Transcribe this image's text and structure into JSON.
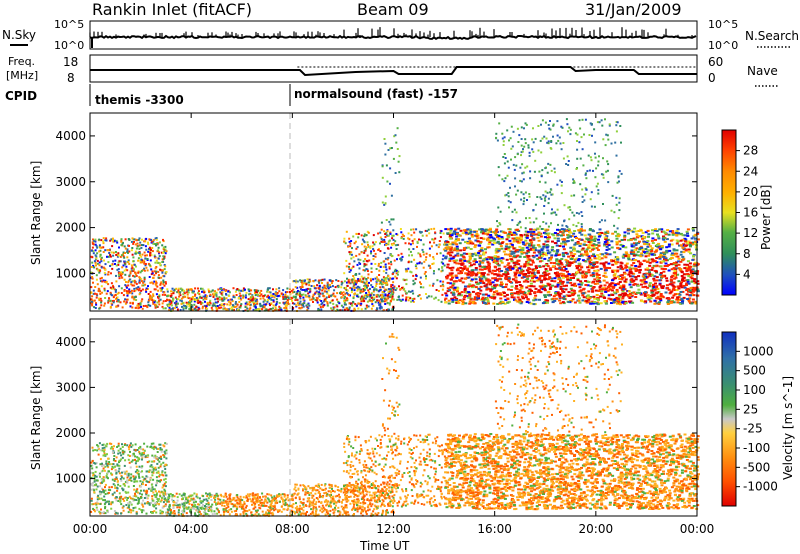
{
  "header": {
    "station": "Rankin Inlet (fitACF)",
    "beam": "Beam 09",
    "date": "31/Jan/2009"
  },
  "nsky_panel": {
    "left_label": "N.Sky",
    "left_ticks": [
      "10^5",
      "10^0"
    ],
    "right_label": "N.Search",
    "right_ticks": [
      "10^5",
      "10^0"
    ]
  },
  "freq_panel": {
    "left_label_1": "Freq.",
    "left_label_2": "[MHz]",
    "left_ticks": [
      "18",
      "8"
    ],
    "right_label": "Nave",
    "right_ticks": [
      "60",
      "0"
    ]
  },
  "cpid_panel": {
    "label": "CPID",
    "entries": [
      {
        "text": "themis -3300",
        "start_hour": 0
      },
      {
        "text": "normalsound (fast) -157",
        "start_hour": 8
      }
    ]
  },
  "xaxis": {
    "label": "Time UT",
    "ticks": [
      "00:00",
      "04:00",
      "08:00",
      "12:00",
      "16:00",
      "20:00",
      "00:00"
    ],
    "range_hours": [
      0,
      24
    ]
  },
  "power_panel": {
    "ylabel": "Slant Range [km]",
    "yticks": [
      "1000",
      "2000",
      "3000",
      "4000"
    ],
    "colorbar_label": "Power [dB]",
    "colorbar_ticks": [
      "28",
      "24",
      "20",
      "16",
      "12",
      "8",
      "4"
    ],
    "colorbar_colors": [
      "#0000ff",
      "#1f4fbf",
      "#2e6fa0",
      "#2f8f5a",
      "#55b045",
      "#8fcf3a",
      "#f0e020",
      "#ffb000",
      "#ff8a00",
      "#ff5a00",
      "#ff2a00",
      "#e00000"
    ]
  },
  "velocity_panel": {
    "ylabel": "Slant Range [km]",
    "yticks": [
      "1000",
      "2000",
      "3000",
      "4000"
    ],
    "colorbar_label": "Velocity [m s^-1]",
    "colorbar_ticks": [
      "1000",
      "500",
      "100",
      "25",
      "-25",
      "-100",
      "-500",
      "-1000"
    ],
    "colorbar_colors": [
      "#1030c0",
      "#2f6fa8",
      "#3a8f70",
      "#4faf3f",
      "#80cc40",
      "#c8c8c8",
      "#ffd040",
      "#ffb020",
      "#ff9010",
      "#ff6000",
      "#ff3000",
      "#e00000"
    ]
  },
  "chart_data": {
    "type": "heatmap",
    "x_range_hours": [
      0,
      24
    ],
    "y_range_km": [
      180,
      4500
    ],
    "series_approx": [
      {
        "name": "E-region near-range echoes",
        "hours": [
          0,
          8
        ],
        "range_km": [
          200,
          1800
        ]
      },
      {
        "name": "F-region band",
        "hours": [
          10,
          24
        ],
        "range_km": [
          400,
          2000
        ]
      },
      {
        "name": "strong power patch",
        "hours": [
          14,
          24
        ],
        "range_km": [
          500,
          1700
        ],
        "power_db": 28
      },
      {
        "name": "far range scatter",
        "hours": [
          16,
          21
        ],
        "range_km": [
          2000,
          4400
        ]
      }
    ]
  }
}
